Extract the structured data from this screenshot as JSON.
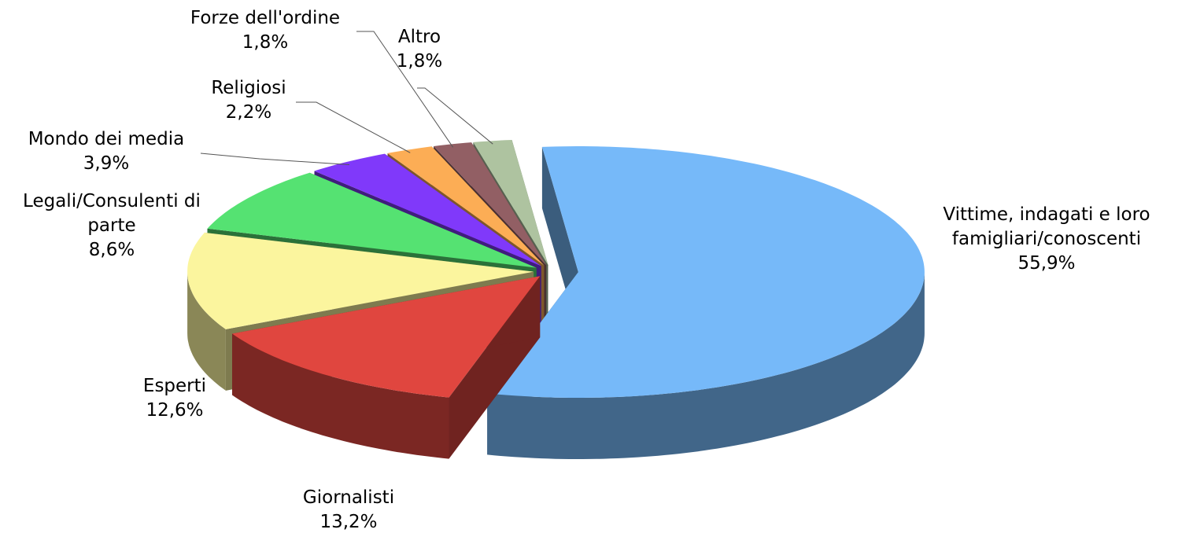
{
  "chart_data": {
    "type": "pie",
    "categories": [
      "Vittime, indagati e loro famigliari/conoscenti",
      "Giornalisti",
      "Esperti",
      "Legali/Consulenti di parte",
      "Mondo dei media",
      "Religiosi",
      "Forze dell'ordine",
      "Altro"
    ],
    "values": [
      55.9,
      13.2,
      12.6,
      8.6,
      3.9,
      2.2,
      1.8,
      1.8
    ],
    "value_labels": [
      "55,9%",
      "13,2%",
      "12,6%",
      "8,6%",
      "3,9%",
      "2,2%",
      "1,8%",
      "1,8%"
    ],
    "colors": [
      "#76b9f9",
      "#e0463f",
      "#fbf59e",
      "#55e272",
      "#8039fa",
      "#fcad55",
      "#925f64",
      "#aec3a0"
    ]
  }
}
